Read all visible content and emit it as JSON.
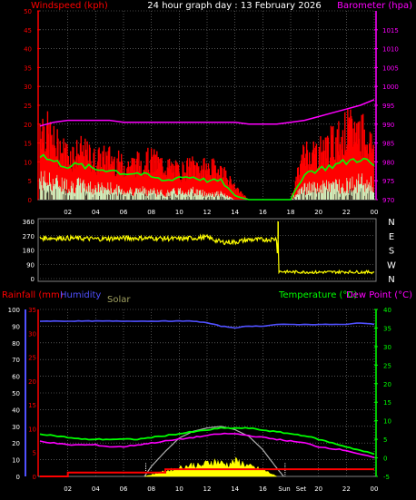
{
  "colors": {
    "wind": "#ff0000",
    "gust": "#ff0000",
    "wind_avg": "#00ff00",
    "wind_low": "#c8ffc8",
    "baro": "#ff00ff",
    "dir": "#ffff00",
    "rain": "#ff0000",
    "humidity": "#5050ff",
    "solar_text": "#a0a060",
    "solar_fill": "#ffff00",
    "solar_theory": "#b0b0b0",
    "temp": "#00ff00",
    "dew": "#ff00ff",
    "grid": "#808080",
    "axis_text": "#ffffff"
  },
  "chart_data": [
    {
      "type": "line",
      "id": "wind-baro",
      "title": "24 hour graph day : 13 February 2026",
      "left_label": "Windspeed (kph)",
      "right_label": "Barometer (hpa)",
      "x_ticks": [
        "02",
        "04",
        "06",
        "08",
        "10",
        "12",
        "14",
        "16",
        "18",
        "20",
        "22",
        "00"
      ],
      "left_ticks": [
        "0",
        "5",
        "10",
        "15",
        "20",
        "25",
        "30",
        "35",
        "40",
        "45",
        "50"
      ],
      "right_ticks": [
        "970",
        "975",
        "980",
        "985",
        "990",
        "995",
        "1000",
        "1005",
        "1010",
        "1015"
      ],
      "ylim_left": [
        0,
        50
      ],
      "ylim_right": [
        970,
        1020
      ],
      "x_hours": [
        0,
        1,
        2,
        3,
        4,
        5,
        6,
        7,
        8,
        9,
        10,
        11,
        12,
        13,
        14,
        15,
        16,
        17,
        18,
        19,
        20,
        21,
        22,
        23,
        24
      ],
      "series": [
        {
          "key": "gust",
          "values": [
            28,
            20,
            16,
            17,
            14,
            15,
            12,
            13,
            14,
            12,
            10,
            12,
            11,
            11,
            4,
            0,
            0,
            0,
            0,
            17,
            17,
            20,
            24,
            25,
            18
          ]
        },
        {
          "key": "wind_avg",
          "values": [
            12,
            10,
            9,
            9,
            8,
            8,
            7,
            7,
            6,
            5,
            6,
            6,
            5,
            5,
            1,
            0,
            0,
            0,
            0,
            7,
            8,
            9,
            10,
            11,
            9
          ]
        },
        {
          "key": "wind_low",
          "values": [
            7,
            6,
            5,
            5,
            4,
            4,
            3,
            3,
            3,
            2,
            3,
            3,
            2,
            2,
            0,
            0,
            0,
            0,
            0,
            4,
            4,
            5,
            5,
            6,
            5
          ]
        },
        {
          "key": "baro",
          "values": [
            989.5,
            990.5,
            991,
            991,
            991,
            991,
            990.5,
            990.5,
            990.5,
            990.5,
            990.5,
            990.5,
            990.5,
            990.5,
            990.5,
            990,
            990,
            990,
            990.5,
            991,
            992,
            993,
            994,
            995,
            996.5
          ]
        }
      ]
    },
    {
      "type": "line",
      "id": "direction",
      "left_ticks": [
        "0",
        "90",
        "180",
        "270",
        "360"
      ],
      "compass": [
        "N",
        "W",
        "S",
        "E",
        "N"
      ],
      "ylim": [
        0,
        360
      ],
      "x_hours": [
        0,
        2,
        4,
        6,
        8,
        10,
        12,
        13,
        14,
        15,
        16,
        17,
        17.1,
        18,
        20,
        22,
        24
      ],
      "values": [
        255,
        255,
        250,
        255,
        255,
        250,
        260,
        230,
        230,
        245,
        245,
        250,
        45,
        42,
        40,
        42,
        40
      ]
    },
    {
      "type": "line",
      "id": "rain-hum-temp",
      "left_label_rain": "Rainfall (mm)",
      "left_label_hum": "Humidity",
      "solar_label": "Solar",
      "right_label_temp": "Temperature (°C)",
      "right_label_dew": "Dew Point (°C)",
      "x_ticks": [
        "02",
        "04",
        "06",
        "08",
        "10",
        "12",
        "14",
        "16",
        "Sun",
        "Set",
        "20",
        "22",
        "00"
      ],
      "hum_ticks": [
        "0",
        "10",
        "20",
        "30",
        "40",
        "50",
        "60",
        "70",
        "80",
        "90",
        "100"
      ],
      "rain_ticks": [
        "0",
        "5",
        "10",
        "15",
        "20",
        "25",
        "30",
        "35"
      ],
      "temp_ticks": [
        "-5",
        "0",
        "5",
        "10",
        "15",
        "20",
        "25",
        "30",
        "35",
        "40"
      ],
      "ylim_hum": [
        0,
        100
      ],
      "ylim_rain": [
        0,
        35
      ],
      "ylim_temp": [
        -5,
        40
      ],
      "x_hours": [
        0,
        1,
        2,
        3,
        4,
        5,
        6,
        7,
        8,
        9,
        10,
        11,
        12,
        13,
        14,
        15,
        16,
        17,
        18,
        19,
        20,
        21,
        22,
        23,
        24
      ],
      "series": [
        {
          "key": "humidity",
          "values": [
            93,
            93,
            93,
            93,
            93,
            93,
            93,
            93,
            93,
            93,
            93,
            93,
            92,
            90,
            89,
            90,
            90,
            91,
            91,
            91,
            91,
            91,
            91,
            92,
            91
          ]
        },
        {
          "key": "temp",
          "values": [
            6.5,
            6,
            5.5,
            5,
            5,
            5,
            5,
            5,
            5.5,
            6,
            6.5,
            7,
            7.5,
            8,
            8,
            8,
            7.5,
            7,
            6.5,
            6,
            5,
            4,
            3,
            2,
            1
          ]
        },
        {
          "key": "dew",
          "values": [
            4.5,
            4,
            3.5,
            3.5,
            3.5,
            3,
            3,
            3.5,
            4,
            4.5,
            5,
            5.5,
            6,
            6.5,
            6.5,
            6,
            5.5,
            5,
            4.5,
            4,
            3,
            2.5,
            2,
            1,
            0
          ]
        },
        {
          "key": "rain",
          "values": [
            0,
            0,
            0.8,
            0.8,
            0.8,
            0.8,
            0.8,
            0.8,
            0.8,
            1.5,
            1.5,
            1.5,
            1.5,
            1.5,
            1.5,
            1.5,
            1.5,
            1.5,
            1.5,
            1.5,
            1.5,
            1.5,
            1.5,
            1.5,
            1.5
          ]
        },
        {
          "key": "solar_theory",
          "note": "theoretical solar curve (normalized to humidity scale)",
          "x": [
            7.5,
            8,
            9,
            10,
            11,
            12,
            13,
            14,
            15,
            16,
            17,
            17.5
          ],
          "values": [
            0,
            6,
            15,
            23,
            27,
            29,
            30,
            28,
            24,
            16,
            5,
            0
          ]
        },
        {
          "key": "solar",
          "x": [
            7.5,
            8,
            9,
            10,
            10.5,
            11,
            11.5,
            12,
            12.5,
            13,
            13.5,
            14,
            14.5,
            15,
            15.5,
            16,
            16.5,
            17
          ],
          "values": [
            0,
            1,
            3,
            5,
            6,
            7,
            6,
            8,
            9,
            8,
            7,
            9,
            8,
            6,
            5,
            4,
            2,
            0
          ]
        }
      ]
    }
  ]
}
